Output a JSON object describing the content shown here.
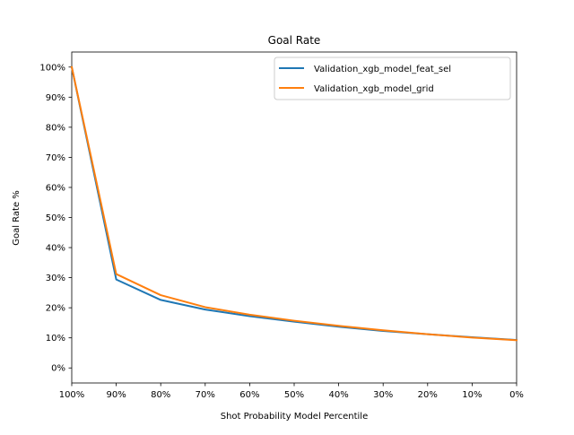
{
  "chart_data": {
    "type": "line",
    "title": "Goal Rate",
    "xlabel": "Shot Probability Model Percentile",
    "ylabel": "Goal Rate %",
    "xlim": [
      100,
      0
    ],
    "ylim": [
      -5,
      105
    ],
    "x_inverted": true,
    "grid": false,
    "legend_position": "top-right",
    "x_ticks": [
      100,
      90,
      80,
      70,
      60,
      50,
      40,
      30,
      20,
      10,
      0
    ],
    "x_tick_labels": [
      "100%",
      "90%",
      "80%",
      "70%",
      "60%",
      "50%",
      "40%",
      "30%",
      "20%",
      "10%",
      "0%"
    ],
    "y_ticks": [
      0,
      10,
      20,
      30,
      40,
      50,
      60,
      70,
      80,
      90,
      100
    ],
    "y_tick_labels": [
      "0%",
      "10%",
      "20%",
      "30%",
      "40%",
      "50%",
      "60%",
      "70%",
      "80%",
      "90%",
      "100%"
    ],
    "x": [
      100,
      90,
      80,
      70,
      60,
      50,
      40,
      30,
      20,
      10,
      0
    ],
    "series": [
      {
        "name": "Validation_xgb_model_feat_sel",
        "color": "#1f77b4",
        "values": [
          100,
          29.4,
          22.6,
          19.4,
          17.2,
          15.4,
          13.7,
          12.3,
          11.2,
          10.2,
          9.3
        ]
      },
      {
        "name": "Validation_xgb_model_grid",
        "color": "#ff7f0e",
        "values": [
          100,
          31.2,
          24.2,
          20.2,
          17.7,
          15.7,
          14.0,
          12.5,
          11.2,
          10.1,
          9.2
        ]
      }
    ]
  }
}
